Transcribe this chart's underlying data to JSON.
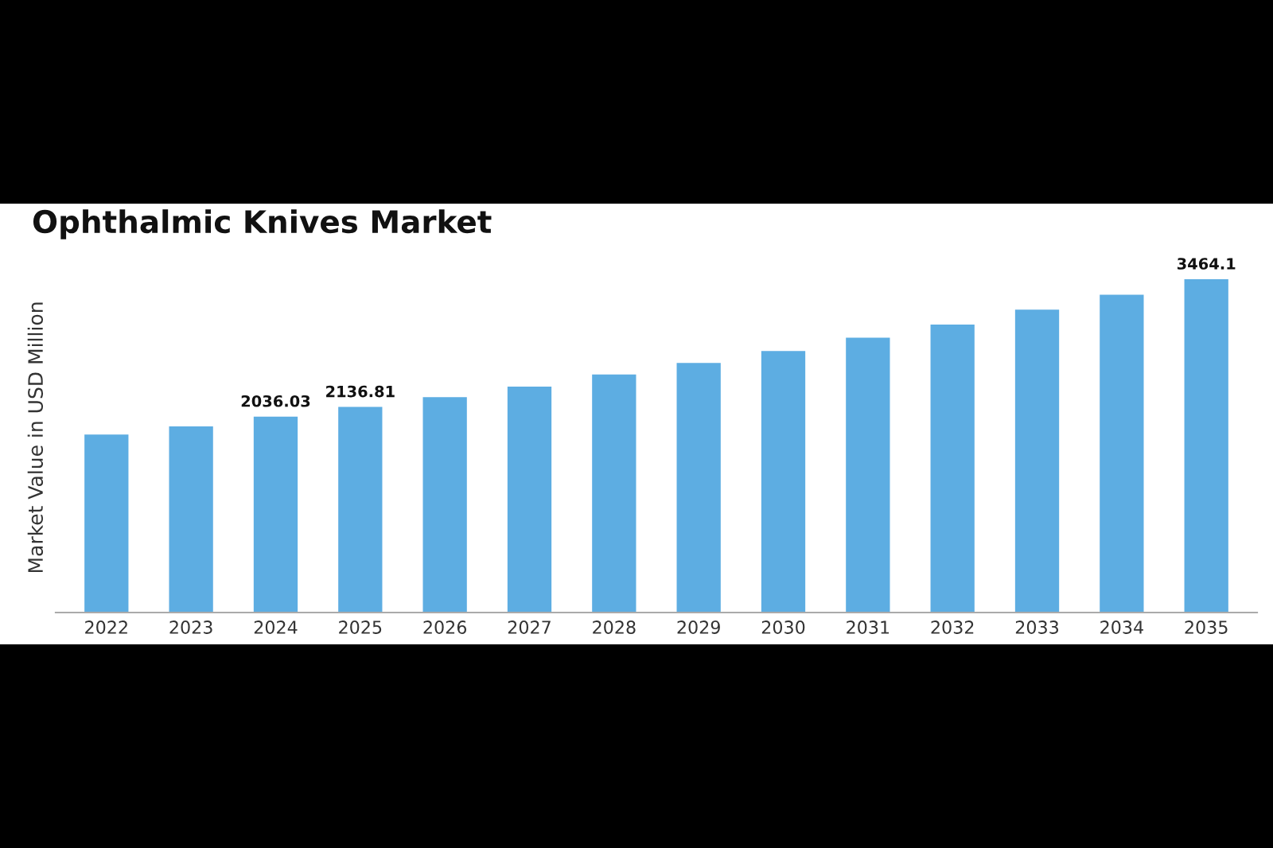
{
  "chart_data": {
    "type": "bar",
    "title": "Ophthalmic Knives Market",
    "ylabel": "Market Value in USD Million",
    "categories": [
      "2022",
      "2023",
      "2024",
      "2025",
      "2026",
      "2027",
      "2028",
      "2029",
      "2030",
      "2031",
      "2032",
      "2033",
      "2034",
      "2035"
    ],
    "values": [
      1849,
      1935,
      2036.03,
      2136.81,
      2238,
      2347,
      2473,
      2593,
      2718,
      2856,
      2993,
      3148,
      3302,
      3464.1
    ],
    "value_labels": [
      null,
      null,
      "2036.03",
      "2136.81",
      null,
      null,
      null,
      null,
      null,
      null,
      null,
      null,
      null,
      "3464.1"
    ],
    "color": "#5dade2",
    "tick_labels": "x",
    "grid": false,
    "legend": false
  }
}
